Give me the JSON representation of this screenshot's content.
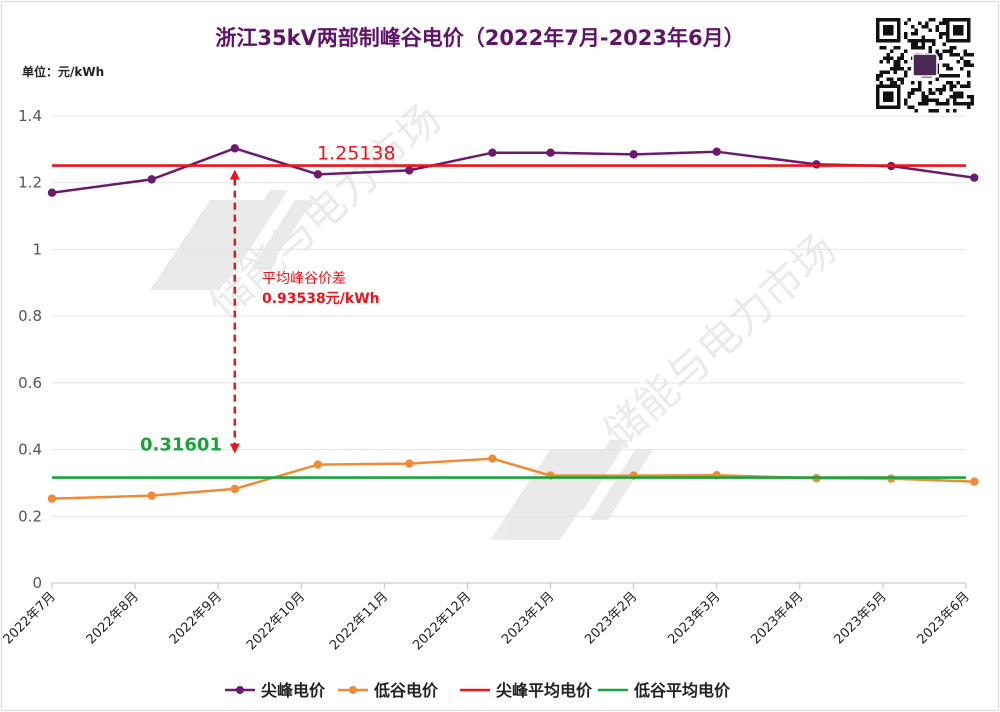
{
  "chart_data": {
    "type": "line",
    "title": "浙江35kV两部制峰谷电价（2022年7月-2023年6月）",
    "unit_label": "单位：元/kWh",
    "categories": [
      "2022年7月",
      "2022年8月",
      "2022年9月",
      "2022年10月",
      "2022年11月",
      "2022年12月",
      "2023年1月",
      "2023年2月",
      "2023年3月",
      "2023年4月",
      "2023年5月",
      "2023年6月"
    ],
    "ylim": [
      0,
      1.4
    ],
    "yticks": [
      "0",
      "0.2",
      "0.4",
      "0.6",
      "0.8",
      "1",
      "1.2",
      "1.4"
    ],
    "grid": true,
    "legend_position": "bottom",
    "series": [
      {
        "name": "尖峰电价",
        "color": "#6a1b6e",
        "marker": true,
        "points": [
          [
            0,
            1.17
          ],
          [
            1.2,
            1.21
          ],
          [
            2.2,
            1.303
          ],
          [
            3.2,
            1.225
          ],
          [
            4.3,
            1.237
          ],
          [
            5.3,
            1.29
          ],
          [
            6,
            1.29
          ],
          [
            7,
            1.285
          ],
          [
            8,
            1.293
          ],
          [
            9.2,
            1.255
          ],
          [
            10.1,
            1.25
          ],
          [
            11.1,
            1.215
          ]
        ]
      },
      {
        "name": "低谷电价",
        "color": "#f08a34",
        "marker": true,
        "points": [
          [
            0,
            0.253
          ],
          [
            1.2,
            0.262
          ],
          [
            2.2,
            0.282
          ],
          [
            3.2,
            0.355
          ],
          [
            4.3,
            0.358
          ],
          [
            5.3,
            0.373
          ],
          [
            6,
            0.322
          ],
          [
            7,
            0.322
          ],
          [
            8,
            0.323
          ],
          [
            9.2,
            0.314
          ],
          [
            10.1,
            0.313
          ],
          [
            11.1,
            0.304
          ]
        ]
      },
      {
        "name": "尖峰平均电价",
        "color": "#e8151b",
        "marker": false,
        "value": 1.25138
      },
      {
        "name": "低谷平均电价",
        "color": "#1aa33c",
        "marker": false,
        "value": 0.31601
      }
    ],
    "annotations": {
      "peak_avg_label": "1.25138",
      "valley_avg_label": "0.31601",
      "diff_title": "平均峰谷价差",
      "diff_value": "0.93538元/kWh",
      "arrow_x": 2.2
    },
    "watermark": "储能与电力市场"
  }
}
